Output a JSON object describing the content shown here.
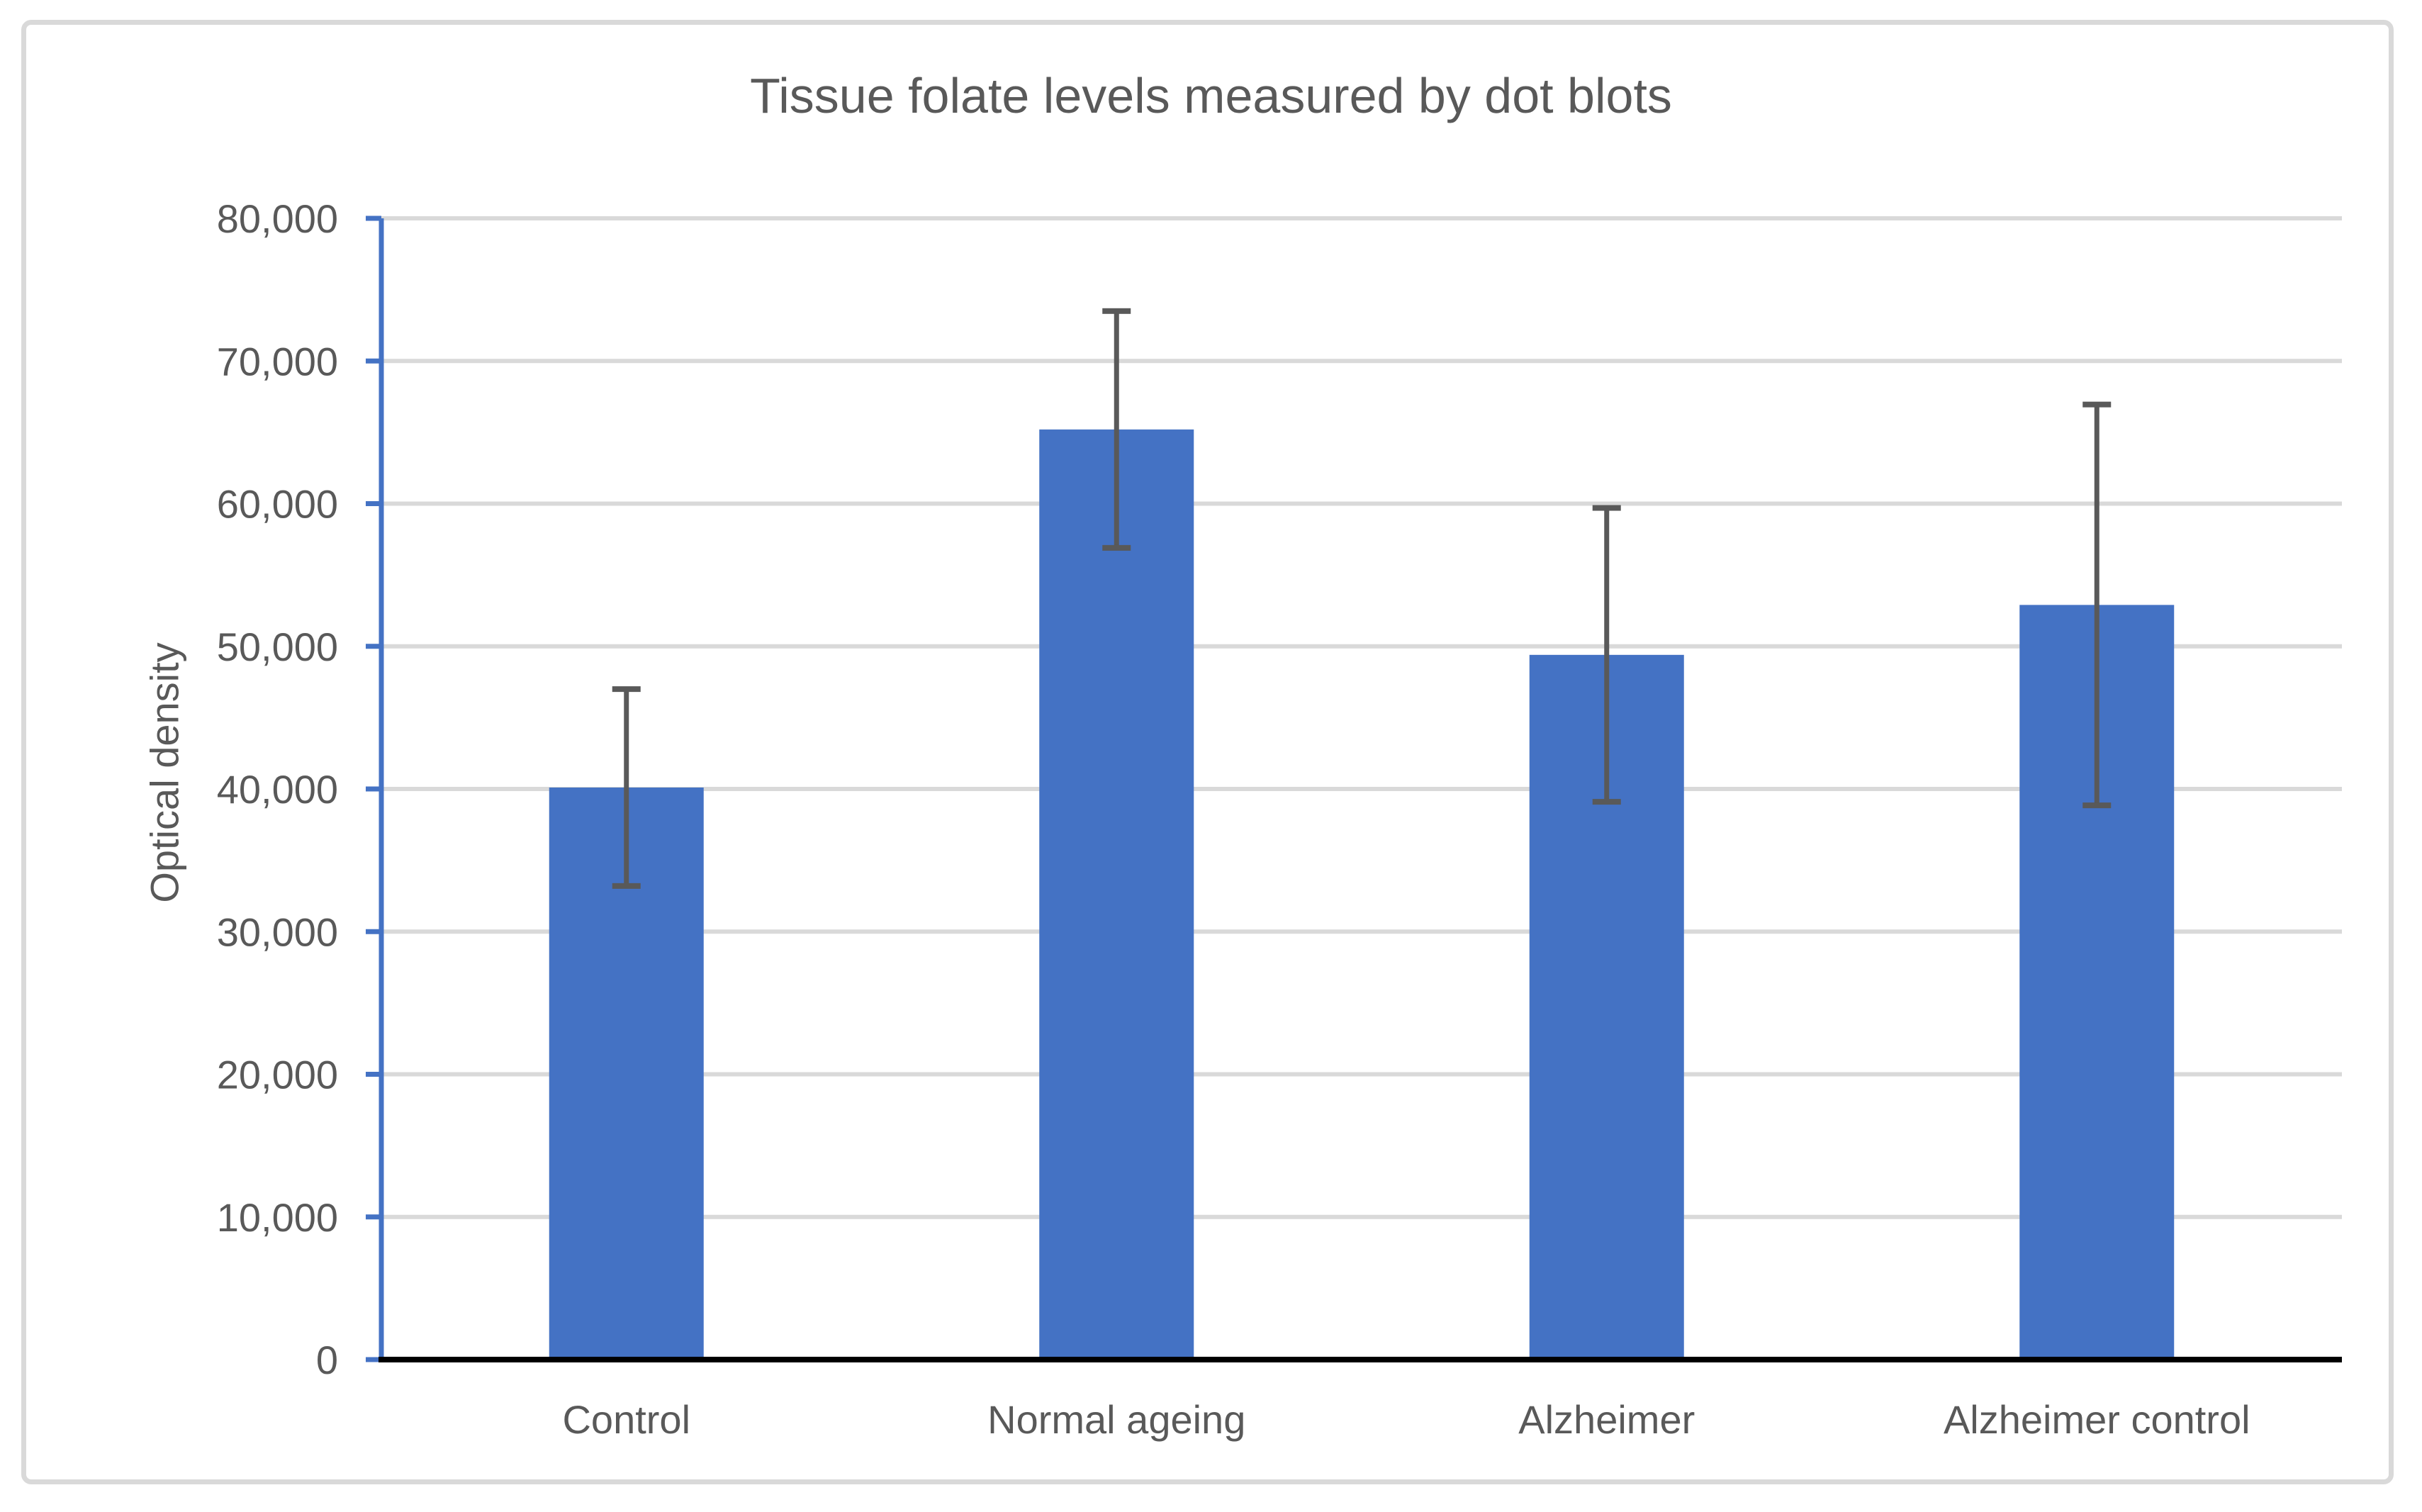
{
  "chart_data": {
    "type": "bar",
    "title": "Tissue folate levels measured by dot blots",
    "xlabel": "",
    "ylabel": "Optical density",
    "categories": [
      "Control",
      "Normal ageing",
      "Alzheimer",
      "Alzheimer control"
    ],
    "values": [
      40100,
      65200,
      49400,
      52900
    ],
    "error_bars": {
      "type": "symmetric",
      "values": [
        6900,
        8300,
        10300,
        14050
      ],
      "upper": [
        47000,
        73500,
        59700,
        66950
      ],
      "lower": [
        33200,
        56900,
        39100,
        38850
      ]
    },
    "ylim": [
      0,
      80000
    ],
    "y_tick_step": 10000,
    "y_tick_labels": [
      "0",
      "10,000",
      "20,000",
      "30,000",
      "40,000",
      "50,000",
      "60,000",
      "70,000",
      "80,000"
    ],
    "grid": "horizontal-major",
    "legend": "none",
    "colors": {
      "bar_fill": "#4472C4",
      "error_bar": "#595959",
      "gridline": "#D9D9D9",
      "y_axis_line": "#4472C4",
      "x_axis_line": "#000000",
      "text": "#595959",
      "frame_border": "#D9D9D9",
      "background": "#FFFFFF"
    }
  }
}
